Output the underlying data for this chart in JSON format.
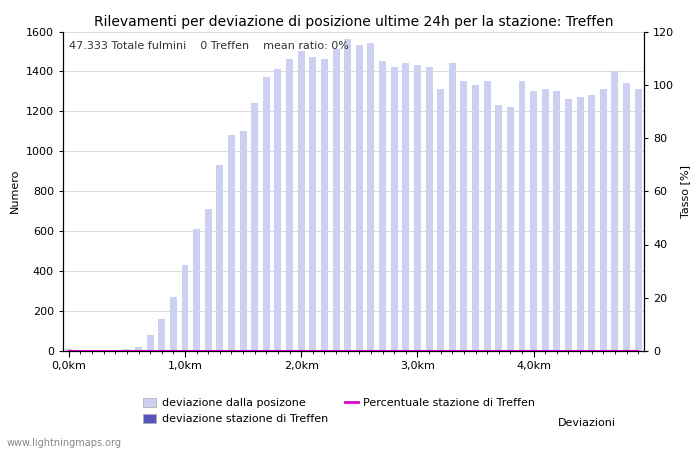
{
  "title": "Rilevamenti per deviazione di posizione ultime 24h per la stazione: Treffen",
  "subtitle_parts": [
    "47.333 Totale fulmini",
    "0 Treffen",
    "mean ratio: 0%"
  ],
  "xlabel": "Deviazioni",
  "ylabel_left": "Numero",
  "ylabel_right": "Tasso [%]",
  "bar_color_light": "#cdd0f0",
  "bar_color_dark": "#5555bb",
  "line_color": "#dd00cc",
  "background_color": "#ffffff",
  "ylim_left": [
    0,
    1600
  ],
  "ylim_right": [
    0,
    120
  ],
  "yticks_left": [
    0,
    200,
    400,
    600,
    800,
    1000,
    1200,
    1400,
    1600
  ],
  "yticks_right": [
    0,
    20,
    40,
    60,
    80,
    100,
    120
  ],
  "xtick_labels": [
    "0,0km",
    "1,0km",
    "2,0km",
    "3,0km",
    "4,0km"
  ],
  "xtick_positions": [
    0,
    10,
    20,
    30,
    40
  ],
  "watermark": "www.lightningmaps.org",
  "bar_values": [
    10,
    5,
    5,
    5,
    5,
    10,
    20,
    80,
    160,
    270,
    430,
    610,
    710,
    930,
    1080,
    1100,
    1240,
    1370,
    1410,
    1460,
    1500,
    1470,
    1460,
    1510,
    1560,
    1530,
    1540,
    1450,
    1420,
    1440,
    1430,
    1420,
    1310,
    1440,
    1350,
    1330,
    1350,
    1230,
    1220,
    1350,
    1300,
    1310,
    1300,
    1260,
    1270,
    1280,
    1310,
    1400,
    1340,
    1310
  ],
  "station_bar_values": [
    0,
    0,
    0,
    0,
    0,
    0,
    0,
    0,
    0,
    0,
    0,
    0,
    0,
    0,
    0,
    0,
    0,
    0,
    0,
    0,
    0,
    0,
    0,
    0,
    0,
    0,
    0,
    0,
    0,
    0,
    0,
    0,
    0,
    0,
    0,
    0,
    0,
    0,
    0,
    0,
    0,
    0,
    0,
    0,
    0,
    0,
    0,
    0,
    0,
    0
  ],
  "ratio_values": [
    0,
    0,
    0,
    0,
    0,
    0,
    0,
    0,
    0,
    0,
    0,
    0,
    0,
    0,
    0,
    0,
    0,
    0,
    0,
    0,
    0,
    0,
    0,
    0,
    0,
    0,
    0,
    0,
    0,
    0,
    0,
    0,
    0,
    0,
    0,
    0,
    0,
    0,
    0,
    0,
    0,
    0,
    0,
    0,
    0,
    0,
    0,
    0,
    0,
    0
  ],
  "legend_entries": [
    {
      "label": "deviazione dalla posizone",
      "color": "#cdd0f0",
      "type": "bar"
    },
    {
      "label": "deviazione stazione di Treffen",
      "color": "#5555bb",
      "type": "bar"
    },
    {
      "label": "Percentuale stazione di Treffen",
      "color": "#dd00cc",
      "type": "line"
    }
  ],
  "title_fontsize": 10,
  "axis_fontsize": 8,
  "tick_fontsize": 8,
  "subtitle_fontsize": 8
}
